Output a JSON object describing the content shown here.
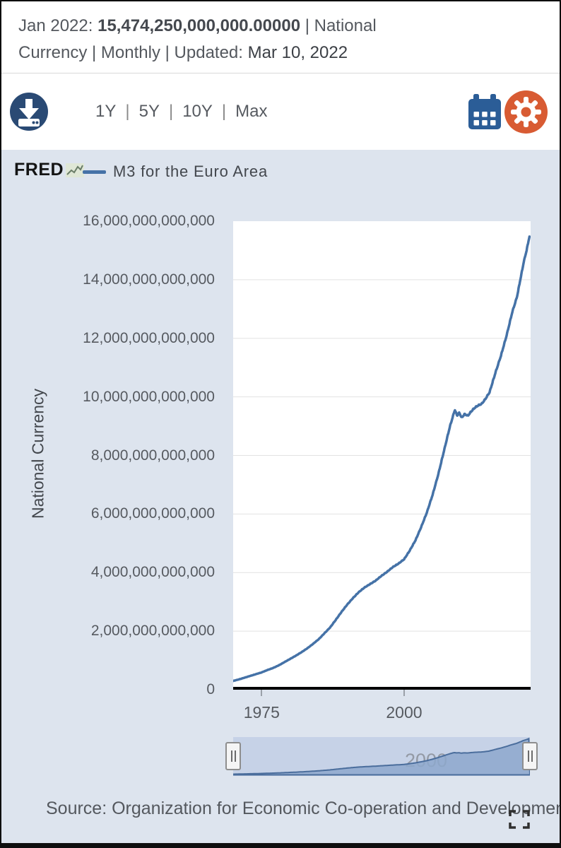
{
  "header": {
    "date_label": "Jan 2022:",
    "value": "15,474,250,000,000.00000",
    "line1_suffix": "| National",
    "line2_prefix": "Currency | Monthly | Updated:",
    "updated_date": "Mar 10, 2022"
  },
  "toolbar": {
    "ranges": [
      "1Y",
      "5Y",
      "10Y",
      "Max"
    ],
    "download_icon": "download-icon",
    "calendar_icon": "calendar-icon",
    "settings_icon": "gear-icon"
  },
  "legend": {
    "brand": "FRED",
    "series_label": "M3 for the Euro Area"
  },
  "chart_data": {
    "type": "line",
    "title": "M3 for the Euro Area",
    "ylabel": "National Currency",
    "frequency": "Monthly",
    "unit": "national currency",
    "value_scale": "trillions",
    "xlim": [
      1970,
      2022.2
    ],
    "ylim_trillions": [
      0,
      16
    ],
    "xticks": [
      1975,
      2000
    ],
    "ytick_labels_top_to_bottom": [
      "16,000,000,000,000",
      "14,000,000,000,000",
      "12,000,000,000,000",
      "10,000,000,000,000",
      "8,000,000,000,000",
      "6,000,000,000,000",
      "4,000,000,000,000",
      "2,000,000,000,000",
      "0"
    ],
    "grid": "horizontal",
    "legend_position": "top-left",
    "latest_observation": {
      "date": "Jan 2022",
      "value": "15,474,250,000,000.00000"
    },
    "series": [
      {
        "name": "M3 for the Euro Area",
        "color": "#4572a7",
        "points_year_value_trillions": [
          [
            1970,
            0.3
          ],
          [
            1971,
            0.35
          ],
          [
            1972,
            0.41
          ],
          [
            1973,
            0.47
          ],
          [
            1974,
            0.53
          ],
          [
            1975,
            0.59
          ],
          [
            1976,
            0.67
          ],
          [
            1977,
            0.74
          ],
          [
            1978,
            0.83
          ],
          [
            1979,
            0.94
          ],
          [
            1980,
            1.05
          ],
          [
            1981,
            1.16
          ],
          [
            1982,
            1.28
          ],
          [
            1983,
            1.41
          ],
          [
            1984,
            1.56
          ],
          [
            1985,
            1.72
          ],
          [
            1986,
            1.92
          ],
          [
            1987,
            2.12
          ],
          [
            1988,
            2.38
          ],
          [
            1989,
            2.65
          ],
          [
            1990,
            2.9
          ],
          [
            1991,
            3.12
          ],
          [
            1992,
            3.32
          ],
          [
            1993,
            3.48
          ],
          [
            1994,
            3.6
          ],
          [
            1995,
            3.72
          ],
          [
            1996,
            3.88
          ],
          [
            1997,
            4.02
          ],
          [
            1998,
            4.18
          ],
          [
            1999,
            4.3
          ],
          [
            2000,
            4.45
          ],
          [
            2001,
            4.75
          ],
          [
            2002,
            5.1
          ],
          [
            2003,
            5.55
          ],
          [
            2004,
            6.05
          ],
          [
            2005,
            6.65
          ],
          [
            2006,
            7.35
          ],
          [
            2007,
            8.15
          ],
          [
            2008,
            8.95
          ],
          [
            2008.9,
            9.55
          ],
          [
            2009.3,
            9.35
          ],
          [
            2009.7,
            9.45
          ],
          [
            2010.1,
            9.28
          ],
          [
            2010.6,
            9.4
          ],
          [
            2011.2,
            9.35
          ],
          [
            2011.8,
            9.5
          ],
          [
            2012.4,
            9.62
          ],
          [
            2013.0,
            9.7
          ],
          [
            2013.6,
            9.75
          ],
          [
            2014.2,
            9.9
          ],
          [
            2015,
            10.15
          ],
          [
            2016,
            10.8
          ],
          [
            2017,
            11.4
          ],
          [
            2018,
            12.1
          ],
          [
            2019,
            12.9
          ],
          [
            2019.8,
            13.4
          ],
          [
            2020.5,
            14.1
          ],
          [
            2021,
            14.6
          ],
          [
            2021.5,
            15.0
          ],
          [
            2022.08,
            15.55
          ]
        ]
      }
    ]
  },
  "slider": {
    "watermark": "2000"
  },
  "source": {
    "text": "Source: Organization for Economic Co-operation and Development"
  },
  "colors": {
    "line": "#4572a7",
    "panel_bg": "#dde4ee",
    "grid": "#e2e2e2",
    "slider_bg": "#c6d2e7",
    "slider_fill": "#8da8cd",
    "slider_line": "#4a6d9c",
    "download_icon": "#2a4a74",
    "calendar_icon": "#2b5d97",
    "gear_icon": "#d85b33",
    "axis": "#000000"
  }
}
